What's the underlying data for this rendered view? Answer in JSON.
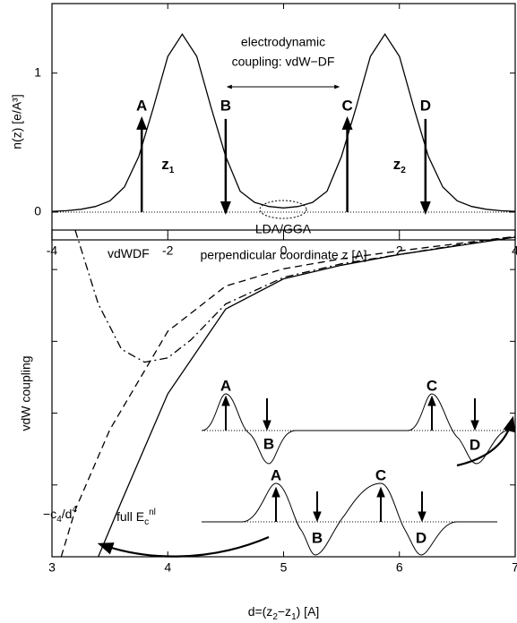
{
  "chart_data": [
    {
      "type": "line",
      "xlabel": "perpendicular coordinate z [A]",
      "ylabel": "n(z) [e/A³]",
      "xlim": [
        -4,
        4
      ],
      "xticks": [
        -4,
        -2,
        0,
        2,
        4
      ],
      "ylim": [
        -0.2,
        1.5
      ],
      "yticks": [
        0,
        1
      ],
      "x": [
        -4,
        -3.75,
        -3.5,
        -3.25,
        -3,
        -2.75,
        -2.5,
        -2.25,
        -2,
        -1.75,
        -1.5,
        -1.25,
        -1,
        -0.75,
        -0.5,
        -0.25,
        0,
        0.25,
        0.5,
        0.75,
        1,
        1.25,
        1.5,
        1.75,
        2,
        2.25,
        2.5,
        2.75,
        3,
        3.25,
        3.5,
        3.75,
        4
      ],
      "series": [
        {
          "color": "#000",
          "values": [
            0.005,
            0.01,
            0.02,
            0.04,
            0.08,
            0.18,
            0.4,
            0.75,
            1.12,
            1.28,
            1.12,
            0.75,
            0.4,
            0.15,
            0.07,
            0.04,
            0.03,
            0.04,
            0.07,
            0.15,
            0.4,
            0.75,
            1.12,
            1.28,
            1.12,
            0.75,
            0.4,
            0.18,
            0.08,
            0.04,
            0.02,
            0.01,
            0.005
          ]
        }
      ],
      "arrows": [
        {
          "label": "A",
          "x": -2.45,
          "y": [
            0,
            0.67
          ]
        },
        {
          "label": "B",
          "x": -1.0,
          "y": [
            0.67,
            0
          ]
        },
        {
          "label": "C",
          "x": 1.1,
          "y": [
            0,
            0.67
          ]
        },
        {
          "label": "D",
          "x": 2.45,
          "y": [
            0.67,
            0
          ]
        }
      ],
      "annotations": [
        "electrodynamic",
        "coupling: vdW−DF",
        "LDA/GGA"
      ],
      "regions": [
        {
          "text": "z",
          "sub": "1",
          "x": -2.0
        },
        {
          "text": "z",
          "sub": "2",
          "x": 2.0
        }
      ]
    },
    {
      "type": "line",
      "xlabel": {
        "text": "d=(z",
        "sub1": "2",
        "mid": "−z",
        "sub2": "1",
        "end": ") [A]"
      },
      "ylabel": "vdW coupling",
      "xlim": [
        3,
        7
      ],
      "xticks": [
        3,
        4,
        5,
        6,
        7
      ],
      "ylim": [
        0,
        4.55
      ],
      "yticks": [
        0,
        1,
        2,
        3,
        4
      ],
      "series": [
        {
          "name": {
            "text": "full E",
            "sub": "c",
            "sup": "nl"
          },
          "style": "solid",
          "color": "#000",
          "x": [
            3.4,
            3.6,
            3.8,
            4,
            4.5,
            5,
            5.5,
            6,
            6.5,
            7
          ],
          "values": [
            0,
            0.77,
            1.52,
            2.27,
            3.45,
            3.87,
            4.06,
            4.21,
            4.33,
            4.45
          ]
        },
        {
          "name": {
            "text": "−c",
            "sub": "4",
            "mid": "/d",
            "sup": "4"
          },
          "style": "dashed",
          "color": "#000",
          "x": [
            3.08,
            3.2,
            3.5,
            4,
            4.5,
            5,
            5.5,
            6,
            6.5,
            7
          ],
          "values": [
            0,
            0.65,
            1.77,
            3.14,
            3.77,
            4.01,
            4.15,
            4.26,
            4.36,
            4.46
          ]
        },
        {
          "name": {
            "text": "vdWDF"
          },
          "style": "dashdot",
          "color": "#000",
          "x": [
            3.2,
            3.4,
            3.6,
            3.8,
            4,
            4.2,
            4.5,
            5,
            5.5,
            6,
            6.5,
            7
          ],
          "values": [
            4.55,
            3.52,
            2.89,
            2.71,
            2.77,
            3.02,
            3.52,
            3.89,
            4.08,
            4.21,
            4.34,
            4.46
          ]
        }
      ],
      "insets": [
        [
          "A",
          "B",
          "C",
          "D"
        ],
        [
          "A",
          "B",
          "C",
          "D"
        ]
      ]
    }
  ]
}
